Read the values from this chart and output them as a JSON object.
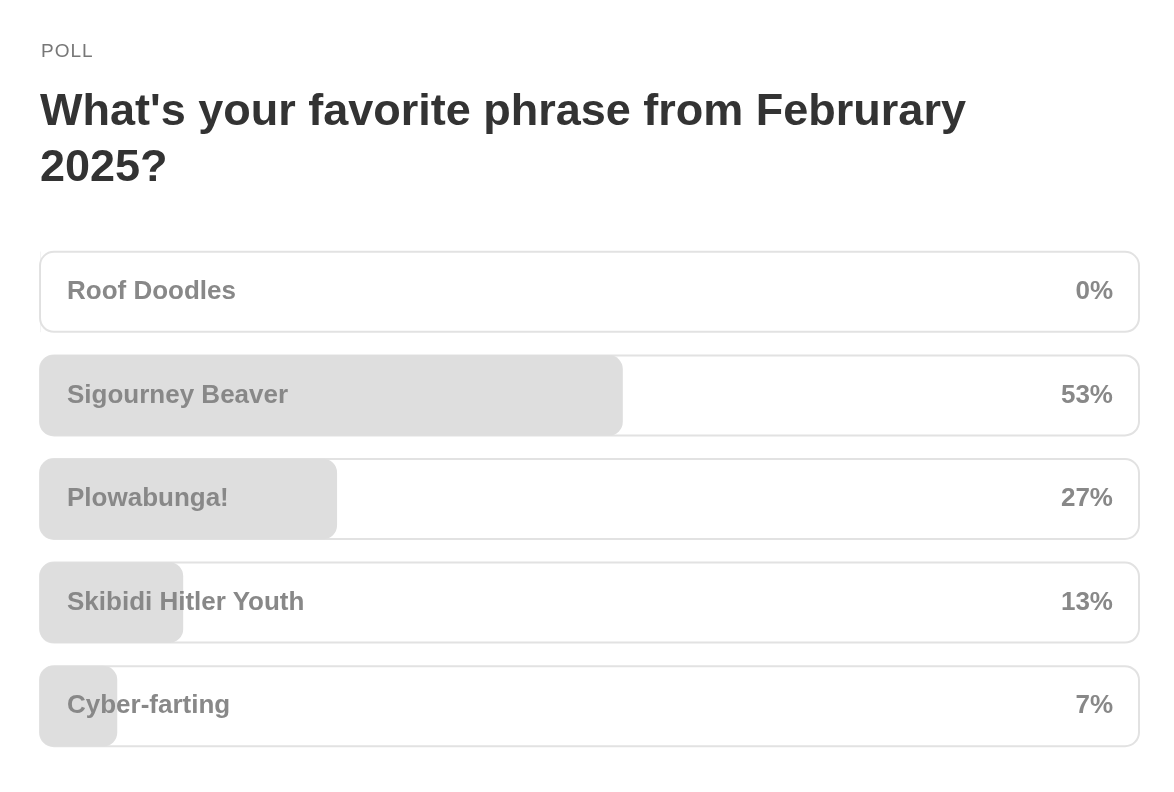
{
  "chart_data": {
    "type": "bar",
    "orientation": "horizontal",
    "subtitle": "POLL",
    "title": "What's your favorite phrase from Februrary 2025?",
    "categories": [
      "Roof Doodles",
      "Sigourney Beaver",
      "Plowabunga!",
      "Skibidi Hitler Youth",
      "Cyber-farting"
    ],
    "values": [
      0,
      53,
      27,
      13,
      7
    ],
    "value_labels": [
      "0%",
      "53%",
      "27%",
      "13%",
      "7%"
    ],
    "color": "#dedede",
    "xlim": [
      0,
      100
    ]
  }
}
